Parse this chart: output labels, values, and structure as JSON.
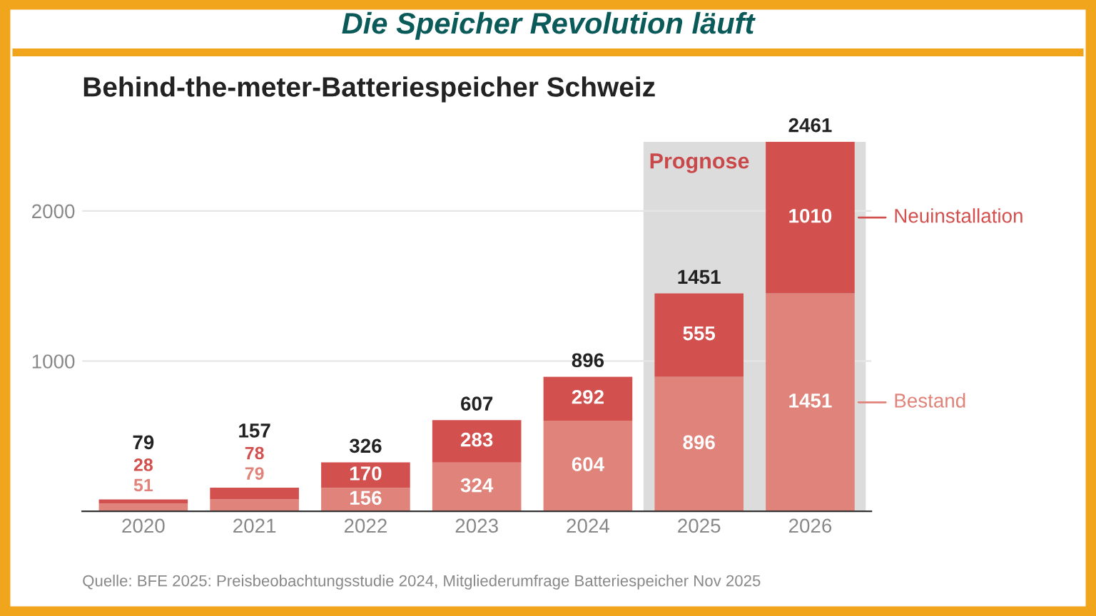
{
  "chart_data": {
    "type": "bar",
    "stacked": true,
    "title": "Behind-the-meter-Batteriespeicher Schweiz",
    "subtitle": "Die Speicher Revolution läuft",
    "categories": [
      "2020",
      "2021",
      "2022",
      "2023",
      "2024",
      "2025",
      "2026"
    ],
    "series": [
      {
        "name": "Bestand",
        "color": "#e0837a",
        "values": [
          51,
          79,
          156,
          324,
          604,
          896,
          1451
        ]
      },
      {
        "name": "Neuinstallation",
        "color": "#d2504e",
        "values": [
          28,
          78,
          170,
          283,
          292,
          555,
          1010
        ]
      }
    ],
    "data_labels": true,
    "totals": [
      "79",
      "157",
      "326",
      "607",
      "896",
      "1451",
      "2461"
    ],
    "ylim": [
      0,
      2461
    ],
    "yticks": [
      1000,
      2000
    ],
    "grid": "y",
    "legend": "right",
    "bands": [
      {
        "axis": "x",
        "from": "2025",
        "to": "2026",
        "label": "Prognose",
        "color": "#dcdcdc"
      }
    ],
    "annotations": [
      "Quelle: BFE 2025: Preisbeobachtungsstudie 2024, Mitgliederumfrage Batteriespeicher Nov 2025"
    ]
  }
}
